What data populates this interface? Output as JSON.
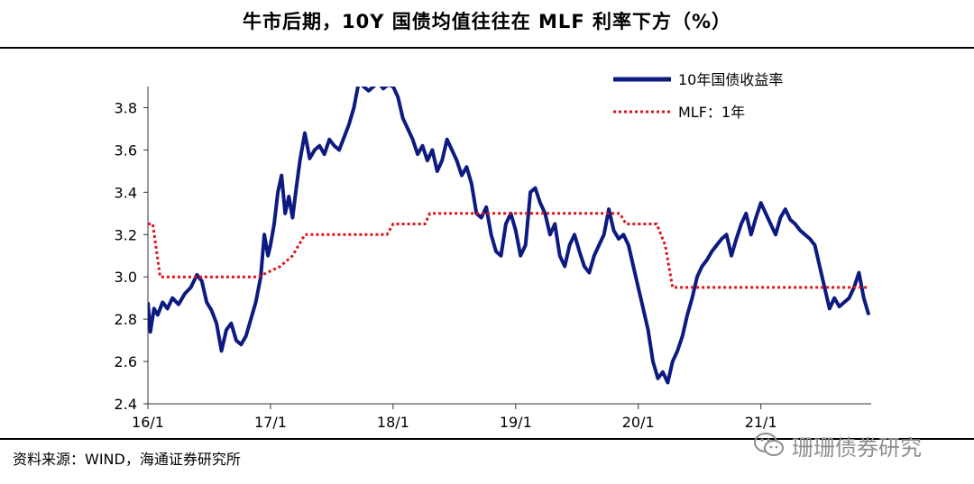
{
  "header": {
    "title": "牛市后期，10Y 国债均值往往在 MLF 利率下方（%）"
  },
  "footer": {
    "source": "资料来源：WIND，海通证券研究所"
  },
  "watermark": {
    "text": "珊珊债券研究",
    "icon": "wechat-icon"
  },
  "colors": {
    "bond": "#0d1a80",
    "mlf": "#e0141e",
    "axis": "#333333"
  },
  "chart_data": {
    "type": "line",
    "title": "牛市后期，10Y 国债均值往往在 MLF 利率下方（%）",
    "xlabel": "",
    "ylabel": "",
    "ylim": [
      2.4,
      3.9
    ],
    "yticks": [
      "2.4",
      "2.6",
      "2.8",
      "3.0",
      "3.2",
      "3.4",
      "3.6",
      "3.8"
    ],
    "xlim": [
      2016.0,
      2021.9
    ],
    "xticks": [
      {
        "label": "16/1",
        "x": 2016.0
      },
      {
        "label": "17/1",
        "x": 2017.0
      },
      {
        "label": "18/1",
        "x": 2018.0
      },
      {
        "label": "19/1",
        "x": 2019.0
      },
      {
        "label": "20/1",
        "x": 2020.0
      },
      {
        "label": "21/1",
        "x": 2021.0
      }
    ],
    "legend_position": "top-right",
    "series": [
      {
        "name": "10年国债收益率",
        "style": "solid",
        "x": [
          2016.0,
          2016.02,
          2016.05,
          2016.08,
          2016.12,
          2016.16,
          2016.2,
          2016.25,
          2016.3,
          2016.35,
          2016.4,
          2016.44,
          2016.48,
          2016.52,
          2016.56,
          2016.6,
          2016.64,
          2016.68,
          2016.72,
          2016.76,
          2016.8,
          2016.84,
          2016.88,
          2016.92,
          2016.95,
          2016.98,
          2017.0,
          2017.03,
          2017.06,
          2017.09,
          2017.12,
          2017.15,
          2017.18,
          2017.21,
          2017.24,
          2017.28,
          2017.32,
          2017.36,
          2017.4,
          2017.44,
          2017.48,
          2017.52,
          2017.56,
          2017.6,
          2017.64,
          2017.68,
          2017.72,
          2017.76,
          2017.8,
          2017.84,
          2017.88,
          2017.92,
          2017.96,
          2018.0,
          2018.04,
          2018.08,
          2018.12,
          2018.16,
          2018.2,
          2018.24,
          2018.28,
          2018.32,
          2018.36,
          2018.4,
          2018.44,
          2018.48,
          2018.52,
          2018.56,
          2018.6,
          2018.64,
          2018.68,
          2018.72,
          2018.76,
          2018.8,
          2018.84,
          2018.88,
          2018.92,
          2018.96,
          2019.0,
          2019.04,
          2019.08,
          2019.12,
          2019.16,
          2019.2,
          2019.24,
          2019.28,
          2019.32,
          2019.36,
          2019.4,
          2019.44,
          2019.48,
          2019.52,
          2019.56,
          2019.6,
          2019.64,
          2019.68,
          2019.72,
          2019.76,
          2019.8,
          2019.84,
          2019.88,
          2019.92,
          2019.96,
          2020.0,
          2020.04,
          2020.08,
          2020.12,
          2020.16,
          2020.2,
          2020.24,
          2020.28,
          2020.32,
          2020.36,
          2020.4,
          2020.44,
          2020.48,
          2020.52,
          2020.56,
          2020.6,
          2020.64,
          2020.68,
          2020.72,
          2020.76,
          2020.8,
          2020.84,
          2020.88,
          2020.92,
          2020.96,
          2021.0,
          2021.04,
          2021.08,
          2021.12,
          2021.16,
          2021.2,
          2021.24,
          2021.28,
          2021.32,
          2021.36,
          2021.4,
          2021.44,
          2021.48,
          2021.52,
          2021.56,
          2021.6,
          2021.64,
          2021.68,
          2021.72,
          2021.76,
          2021.8,
          2021.84,
          2021.88
        ],
        "values": [
          2.88,
          2.74,
          2.85,
          2.82,
          2.88,
          2.85,
          2.9,
          2.87,
          2.92,
          2.95,
          3.01,
          2.98,
          2.88,
          2.84,
          2.78,
          2.65,
          2.75,
          2.78,
          2.7,
          2.68,
          2.72,
          2.8,
          2.88,
          3.0,
          3.2,
          3.1,
          3.15,
          3.25,
          3.4,
          3.48,
          3.3,
          3.38,
          3.28,
          3.42,
          3.55,
          3.68,
          3.56,
          3.6,
          3.62,
          3.58,
          3.65,
          3.62,
          3.6,
          3.66,
          3.72,
          3.8,
          3.92,
          3.9,
          3.88,
          3.9,
          3.92,
          3.89,
          3.91,
          3.9,
          3.85,
          3.75,
          3.7,
          3.65,
          3.58,
          3.62,
          3.55,
          3.6,
          3.5,
          3.55,
          3.65,
          3.6,
          3.55,
          3.48,
          3.52,
          3.44,
          3.3,
          3.28,
          3.33,
          3.2,
          3.12,
          3.1,
          3.25,
          3.3,
          3.22,
          3.1,
          3.15,
          3.4,
          3.42,
          3.35,
          3.3,
          3.2,
          3.25,
          3.1,
          3.05,
          3.15,
          3.2,
          3.12,
          3.05,
          3.02,
          3.1,
          3.15,
          3.2,
          3.32,
          3.22,
          3.18,
          3.2,
          3.15,
          3.05,
          2.95,
          2.85,
          2.75,
          2.6,
          2.52,
          2.55,
          2.5,
          2.6,
          2.65,
          2.72,
          2.82,
          2.9,
          3.0,
          3.05,
          3.08,
          3.12,
          3.15,
          3.18,
          3.2,
          3.1,
          3.18,
          3.25,
          3.3,
          3.2,
          3.28,
          3.35,
          3.3,
          3.25,
          3.2,
          3.28,
          3.32,
          3.27,
          3.25,
          3.22,
          3.2,
          3.18,
          3.15,
          3.05,
          2.95,
          2.85,
          2.9,
          2.86,
          2.88,
          2.9,
          2.95,
          3.02,
          2.9,
          2.82
        ]
      },
      {
        "name": "MLF：1年",
        "style": "dotted",
        "step_points": [
          [
            2016.0,
            3.25
          ],
          [
            2016.04,
            3.25
          ],
          [
            2016.1,
            3.0
          ],
          [
            2016.9,
            3.0
          ],
          [
            2017.08,
            3.05
          ],
          [
            2017.18,
            3.1
          ],
          [
            2017.28,
            3.2
          ],
          [
            2017.95,
            3.2
          ],
          [
            2018.0,
            3.25
          ],
          [
            2018.26,
            3.25
          ],
          [
            2018.3,
            3.3
          ],
          [
            2019.85,
            3.3
          ],
          [
            2019.9,
            3.25
          ],
          [
            2020.15,
            3.25
          ],
          [
            2020.22,
            3.15
          ],
          [
            2020.28,
            2.95
          ],
          [
            2021.88,
            2.95
          ]
        ]
      }
    ]
  }
}
